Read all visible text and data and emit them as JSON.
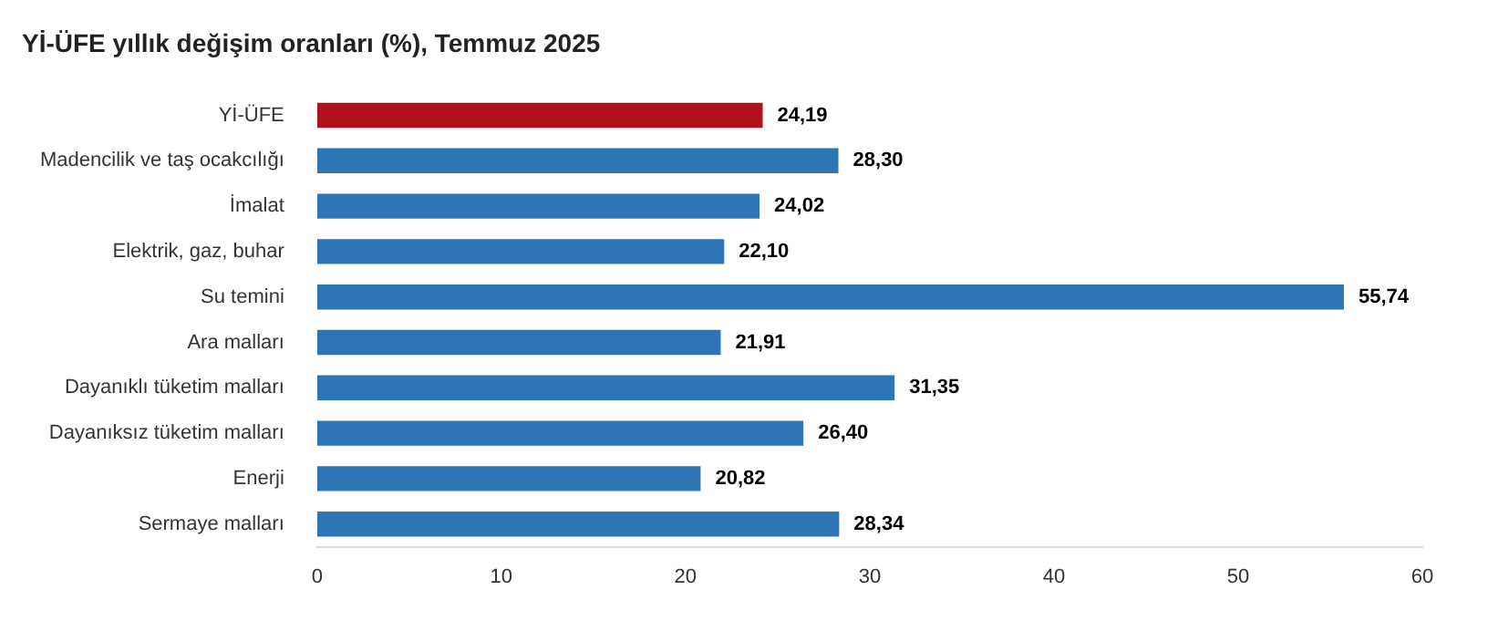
{
  "chart_data": {
    "type": "bar",
    "orientation": "horizontal",
    "title": "Yİ-ÜFE yıllık değişim oranları (%), Temmuz 2025",
    "categories": [
      "Yİ-ÜFE",
      "Madencilik ve taş ocakcılığı",
      "İmalat",
      "Elektrik, gaz, buhar",
      "Su temini",
      "Ara malları",
      "Dayanıklı tüketim malları",
      "Dayanıksız tüketim malları",
      "Enerji",
      "Sermaye malları"
    ],
    "values": [
      24.19,
      28.3,
      24.02,
      22.1,
      55.74,
      21.91,
      31.35,
      26.4,
      20.82,
      28.34
    ],
    "value_labels": [
      "24,19",
      "28,30",
      "24,02",
      "22,10",
      "55,74",
      "21,91",
      "31,35",
      "26,40",
      "20,82",
      "28,34"
    ],
    "colors": [
      "#b2101c",
      "#2e75b6",
      "#2e75b6",
      "#2e75b6",
      "#2e75b6",
      "#2e75b6",
      "#2e75b6",
      "#2e75b6",
      "#2e75b6",
      "#2e75b6"
    ],
    "xlim": [
      0,
      60
    ],
    "xticks": [
      0,
      10,
      20,
      30,
      40,
      50,
      60
    ],
    "grid": false,
    "legend": false
  }
}
